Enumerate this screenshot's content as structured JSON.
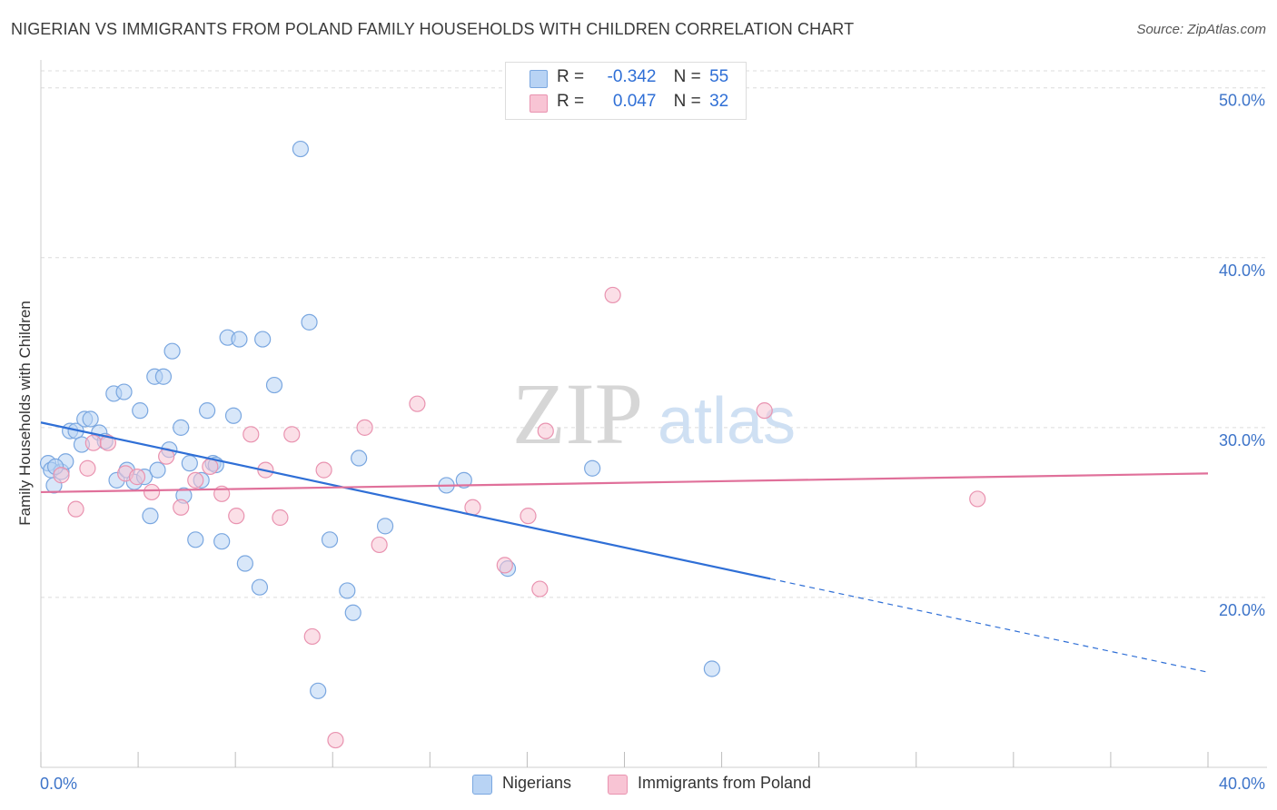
{
  "title": "NIGERIAN VS IMMIGRANTS FROM POLAND FAMILY HOUSEHOLDS WITH CHILDREN CORRELATION CHART",
  "source": "Source: ZipAtlas.com",
  "watermark": {
    "zip": "ZIP",
    "atlas": "atlas"
  },
  "legend": {
    "series1": {
      "r_label": "R =",
      "r_value": "-0.342",
      "n_label": "N =",
      "n_value": "55"
    },
    "series2": {
      "r_label": "R =",
      "r_value": "0.047",
      "n_label": "N =",
      "n_value": "32"
    }
  },
  "colors": {
    "nigerians_fill": "#b8d3f4",
    "nigerians_stroke": "#7aa7e0",
    "nigerians_line": "#2f6fd6",
    "poland_fill": "#f8c4d4",
    "poland_stroke": "#e993b0",
    "poland_line": "#e0709a",
    "axis_text": "#3d74c9"
  },
  "chart_data": {
    "type": "scatter",
    "title": "NIGERIAN VS IMMIGRANTS FROM POLAND FAMILY HOUSEHOLDS WITH CHILDREN CORRELATION CHART",
    "xlabel": "",
    "ylabel": "Family Households with Children",
    "xlim": [
      0,
      40
    ],
    "ylim": [
      10,
      51
    ],
    "x_tick_labels": [
      "0.0%",
      "40.0%"
    ],
    "y_ticks": [
      20,
      30,
      40,
      50
    ],
    "y_tick_labels": [
      "20.0%",
      "30.0%",
      "40.0%",
      "50.0%"
    ],
    "grid": true,
    "legend_position": "top-center",
    "series": [
      {
        "name": "Nigerians",
        "r": -0.342,
        "n": 55,
        "trend": {
          "x0": 0,
          "y0": 30.3,
          "x1": 25,
          "y1": 21.1,
          "dashed_to_x": 40,
          "dashed_to_y": 15.6
        },
        "points": [
          [
            0.25,
            27.9
          ],
          [
            0.35,
            27.5
          ],
          [
            0.45,
            26.6
          ],
          [
            0.7,
            27.4
          ],
          [
            0.85,
            28.0
          ],
          [
            1.0,
            29.8
          ],
          [
            1.2,
            29.8
          ],
          [
            1.4,
            29.0
          ],
          [
            1.5,
            30.5
          ],
          [
            1.7,
            30.5
          ],
          [
            2.0,
            29.7
          ],
          [
            2.2,
            29.2
          ],
          [
            2.5,
            32.0
          ],
          [
            2.6,
            26.9
          ],
          [
            2.85,
            32.1
          ],
          [
            2.95,
            27.5
          ],
          [
            3.2,
            26.8
          ],
          [
            3.4,
            31.0
          ],
          [
            3.55,
            27.1
          ],
          [
            3.75,
            24.8
          ],
          [
            3.9,
            33.0
          ],
          [
            4.0,
            27.5
          ],
          [
            4.2,
            33.0
          ],
          [
            4.4,
            28.7
          ],
          [
            4.5,
            34.5
          ],
          [
            4.8,
            30.0
          ],
          [
            4.9,
            26.0
          ],
          [
            5.1,
            27.9
          ],
          [
            5.3,
            23.4
          ],
          [
            5.5,
            26.9
          ],
          [
            5.7,
            31.0
          ],
          [
            5.9,
            27.9
          ],
          [
            6.0,
            27.8
          ],
          [
            6.2,
            23.3
          ],
          [
            6.4,
            35.3
          ],
          [
            6.6,
            30.7
          ],
          [
            6.8,
            35.2
          ],
          [
            7.0,
            22.0
          ],
          [
            7.5,
            20.6
          ],
          [
            7.6,
            35.2
          ],
          [
            8.0,
            32.5
          ],
          [
            8.9,
            46.4
          ],
          [
            9.2,
            36.2
          ],
          [
            9.5,
            14.5
          ],
          [
            9.9,
            23.4
          ],
          [
            10.5,
            20.4
          ],
          [
            10.7,
            19.1
          ],
          [
            10.9,
            28.2
          ],
          [
            11.8,
            24.2
          ],
          [
            13.9,
            26.6
          ],
          [
            14.5,
            26.9
          ],
          [
            16.0,
            21.7
          ],
          [
            18.9,
            27.6
          ],
          [
            23.0,
            15.8
          ],
          [
            0.5,
            27.7
          ]
        ]
      },
      {
        "name": "Immigrants from Poland",
        "r": 0.047,
        "n": 32,
        "trend": {
          "x0": 0,
          "y0": 26.2,
          "x1": 40,
          "y1": 27.3
        },
        "points": [
          [
            0.7,
            27.2
          ],
          [
            1.2,
            25.2
          ],
          [
            1.8,
            29.1
          ],
          [
            2.3,
            29.1
          ],
          [
            2.9,
            27.3
          ],
          [
            3.3,
            27.1
          ],
          [
            3.8,
            26.2
          ],
          [
            4.3,
            28.3
          ],
          [
            4.8,
            25.3
          ],
          [
            5.3,
            26.9
          ],
          [
            5.8,
            27.7
          ],
          [
            6.2,
            26.1
          ],
          [
            6.7,
            24.8
          ],
          [
            7.2,
            29.6
          ],
          [
            7.7,
            27.5
          ],
          [
            8.2,
            24.7
          ],
          [
            8.6,
            29.6
          ],
          [
            9.3,
            17.7
          ],
          [
            9.7,
            27.5
          ],
          [
            10.1,
            11.6
          ],
          [
            11.1,
            30.0
          ],
          [
            11.6,
            23.1
          ],
          [
            12.9,
            31.4
          ],
          [
            14.8,
            25.3
          ],
          [
            15.9,
            21.9
          ],
          [
            16.7,
            24.8
          ],
          [
            17.1,
            20.5
          ],
          [
            17.3,
            29.8
          ],
          [
            19.6,
            37.8
          ],
          [
            24.8,
            31.0
          ],
          [
            32.1,
            25.8
          ],
          [
            1.6,
            27.6
          ]
        ]
      }
    ]
  },
  "bottom_legend": {
    "item1": "Nigerians",
    "item2": "Immigrants from Poland"
  }
}
